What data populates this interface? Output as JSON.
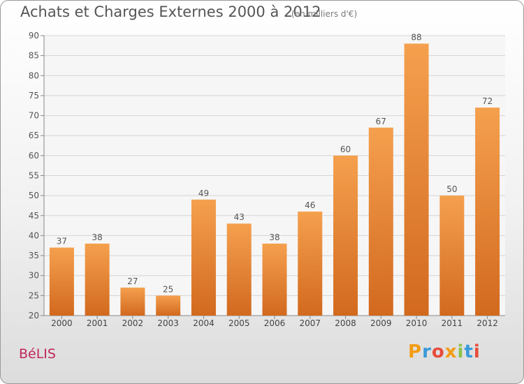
{
  "header": {
    "title": "Achats et Charges Externes 2000 à 2012",
    "subtitle": "(en milliers d'€)"
  },
  "footer": {
    "commune": "BéLIS",
    "logo_text": "Proxiti",
    "logo_colors": [
      "#f39c12",
      "#3a9ad9",
      "#e74c3c",
      "#f39c12",
      "#8bc34a",
      "#3a9ad9",
      "#e74c3c"
    ]
  },
  "chart_data": {
    "type": "bar",
    "categories": [
      "2000",
      "2001",
      "2002",
      "2003",
      "2004",
      "2005",
      "2006",
      "2007",
      "2008",
      "2009",
      "2010",
      "2011",
      "2012"
    ],
    "values": [
      37,
      38,
      27,
      25,
      49,
      43,
      38,
      46,
      60,
      67,
      88,
      50,
      72
    ],
    "data_labels": [
      "37",
      "38",
      "27",
      "25",
      "49",
      "43",
      "38",
      "46",
      "60",
      "67",
      "88",
      "50",
      "72"
    ],
    "ylim": [
      20,
      90
    ],
    "yticks": [
      20,
      25,
      30,
      35,
      40,
      45,
      50,
      55,
      60,
      65,
      70,
      75,
      80,
      85,
      90
    ],
    "grid": true,
    "bar_color_top": "#f5a04e",
    "bar_color_bottom": "#d2691e"
  }
}
